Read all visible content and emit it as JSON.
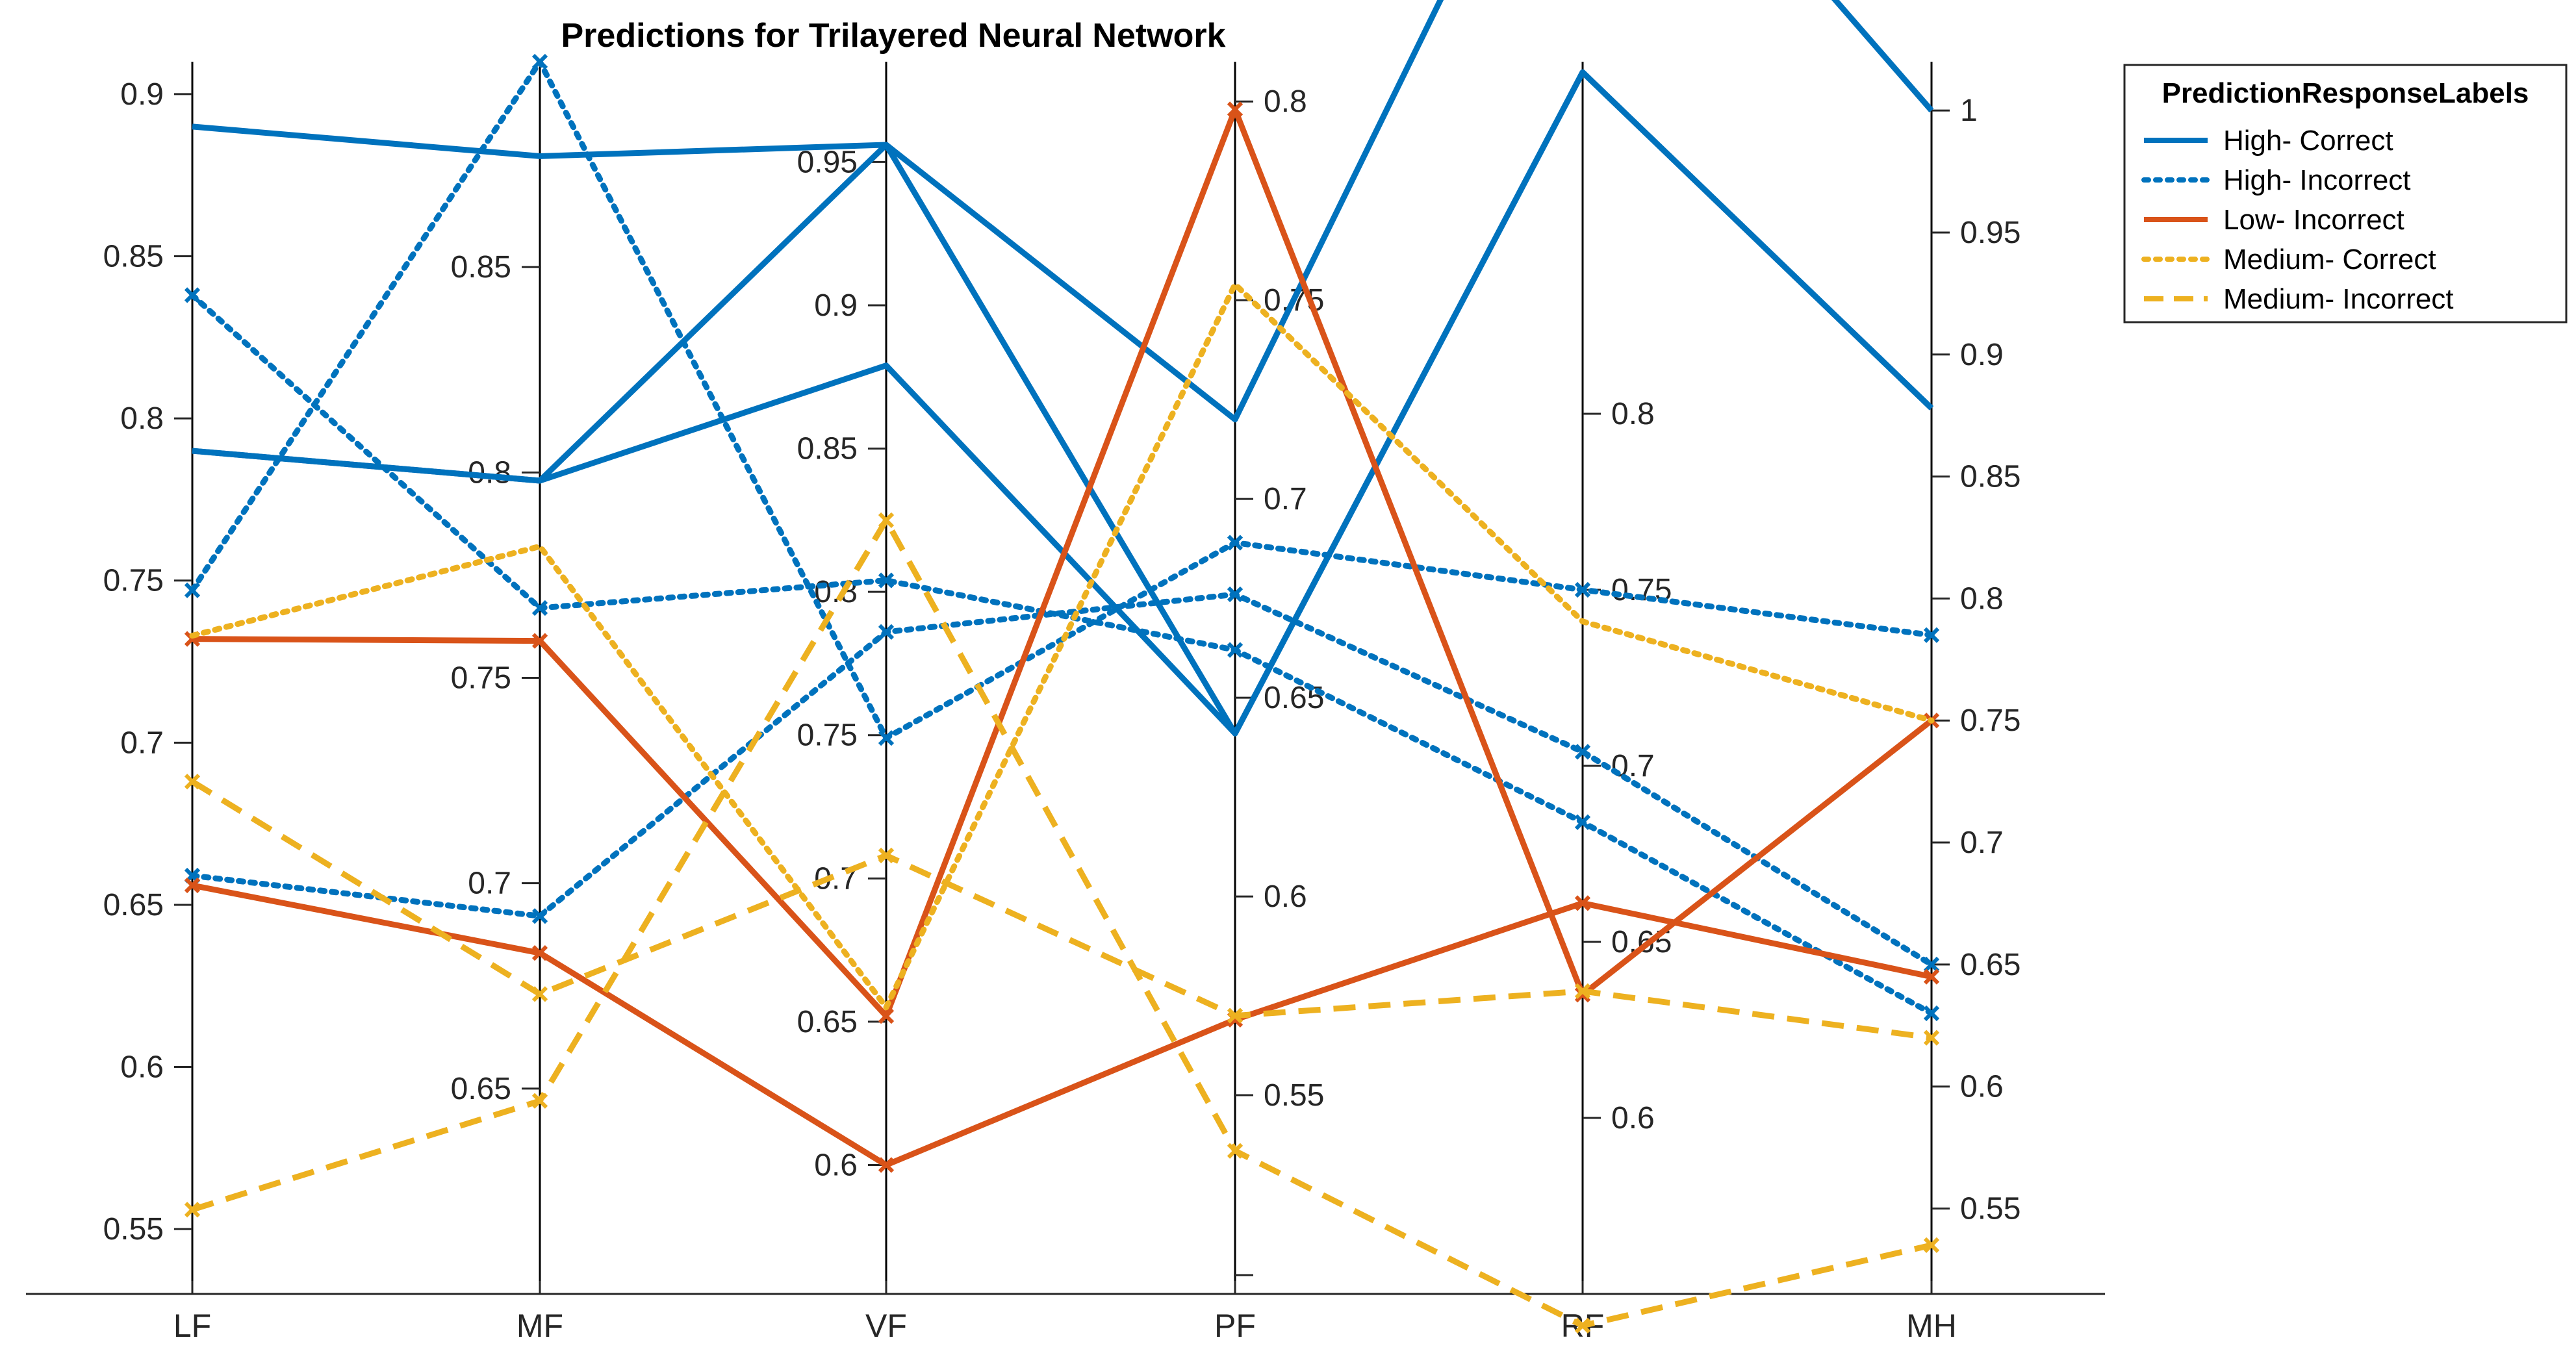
{
  "chart_data": {
    "type": "line",
    "subtype": "parallel-coordinates",
    "title": "Predictions for Trilayered Neural Network",
    "categories": [
      "LF",
      "MF",
      "VF",
      "PF",
      "RF",
      "MH"
    ],
    "axes": [
      {
        "category": "LF",
        "ylim": [
          0.53,
          0.91
        ],
        "ticks": [
          "0.55",
          "0.6",
          "0.65",
          "0.7",
          "0.75",
          "0.8",
          "0.85",
          "0.9"
        ],
        "tick_side": "left"
      },
      {
        "category": "MF",
        "ylim": [
          0.6,
          0.9
        ],
        "ticks": [
          "0.65",
          "0.7",
          "0.75",
          "0.8",
          "0.85"
        ],
        "tick_side": "left"
      },
      {
        "category": "VF",
        "ylim": [
          0.555,
          0.985
        ],
        "ticks": [
          "0.6",
          "0.65",
          "0.7",
          "0.75",
          "0.8",
          "0.85",
          "0.9",
          "0.95"
        ],
        "tick_side": "left"
      },
      {
        "category": "PF",
        "ylim": [
          0.5,
          0.81
        ],
        "ticks": [
          "0.55",
          "0.6",
          "0.65",
          "0.7",
          "0.75",
          "0.8"
        ],
        "tick_side": "right"
      },
      {
        "category": "RF",
        "ylim": [
          0.55,
          0.9
        ],
        "ticks": [
          "0.6",
          "0.65",
          "0.7",
          "0.75",
          "0.8"
        ],
        "tick_side": "right"
      },
      {
        "category": "MH",
        "ylim": [
          0.515,
          1.02
        ],
        "ticks": [
          "0.55",
          "0.6",
          "0.65",
          "0.7",
          "0.75",
          "0.8",
          "0.85",
          "0.9",
          "0.95",
          "1"
        ],
        "tick_side": "right"
      }
    ],
    "legend": {
      "title": "PredictionResponseLabels",
      "placement": "outside-top-right",
      "entries": [
        {
          "label": "High- Correct",
          "color": "#0072BD",
          "style": "solid"
        },
        {
          "label": "High- Incorrect",
          "color": "#0072BD",
          "style": "dotted"
        },
        {
          "label": "Low- Incorrect",
          "color": "#D95319",
          "style": "solid"
        },
        {
          "label": "Medium- Correct",
          "color": "#EDB120",
          "style": "dotted"
        },
        {
          "label": "Medium- Incorrect",
          "color": "#EDB120",
          "style": "dashed"
        }
      ]
    },
    "series": [
      {
        "group": "High- Correct",
        "color": "#0072BD",
        "style": "solid",
        "marker": false,
        "values": [
          0.89,
          0.877,
          0.956,
          0.72,
          1.0,
          1.0
        ]
      },
      {
        "group": "High- Correct",
        "color": "#0072BD",
        "style": "solid",
        "marker": false,
        "values": [
          0.79,
          0.798,
          0.879,
          0.641,
          0.897,
          0.878
        ]
      },
      {
        "group": "High- Correct",
        "color": "#0072BD",
        "style": "solid",
        "marker": false,
        "values": [
          0.79,
          0.798,
          0.956,
          0.641,
          0.897,
          0.878
        ]
      },
      {
        "group": "High- Incorrect",
        "color": "#0072BD",
        "style": "dotted",
        "marker": true,
        "values": [
          0.838,
          0.767,
          0.804,
          0.662,
          0.684,
          0.63
        ]
      },
      {
        "group": "High- Incorrect",
        "color": "#0072BD",
        "style": "dotted",
        "marker": true,
        "values": [
          0.747,
          0.9,
          0.749,
          0.689,
          0.75,
          0.785
        ]
      },
      {
        "group": "High- Incorrect",
        "color": "#0072BD",
        "style": "dotted",
        "marker": true,
        "values": [
          0.659,
          0.692,
          0.786,
          0.676,
          0.704,
          0.65
        ]
      },
      {
        "group": "Low- Incorrect",
        "color": "#D95319",
        "style": "solid",
        "marker": true,
        "values": [
          0.732,
          0.759,
          0.652,
          0.798,
          0.635,
          0.75
        ]
      },
      {
        "group": "Low- Incorrect",
        "color": "#D95319",
        "style": "solid",
        "marker": true,
        "values": [
          0.656,
          0.683,
          0.6,
          0.569,
          0.661,
          0.645
        ]
      },
      {
        "group": "Medium- Correct",
        "color": "#EDB120",
        "style": "dotted",
        "marker": false,
        "values": [
          0.733,
          0.782,
          0.655,
          0.754,
          0.741,
          0.75
        ]
      },
      {
        "group": "Medium- Incorrect",
        "color": "#EDB120",
        "style": "dashed",
        "marker": true,
        "values": [
          0.688,
          0.673,
          0.708,
          0.57,
          0.636,
          0.62
        ]
      },
      {
        "group": "Medium- Incorrect",
        "color": "#EDB120",
        "style": "dashed",
        "marker": true,
        "values": [
          0.556,
          0.647,
          0.825,
          0.536,
          0.541,
          0.535
        ]
      }
    ]
  }
}
